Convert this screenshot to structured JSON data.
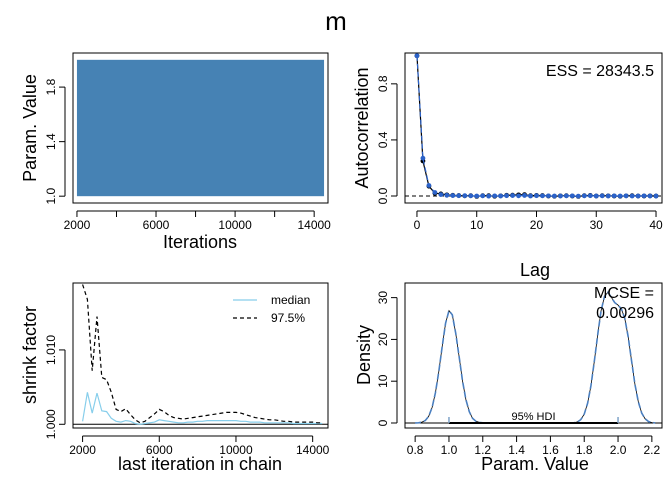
{
  "figure": {
    "title": "m"
  },
  "chart_data": [
    {
      "type": "area",
      "panel": "trace",
      "xlabel": "Iterations",
      "ylabel": "Param. Value",
      "xlim": [
        1800,
        14700
      ],
      "ylim": [
        0.95,
        2.05
      ],
      "xticks": [
        2000,
        6000,
        10000,
        14000
      ],
      "xtick_labels": [
        "2000",
        "6000",
        "10000",
        "14000"
      ],
      "xminor_ticks": [
        4000,
        8000,
        12000
      ],
      "yticks": [
        1.0,
        1.4,
        1.8
      ],
      "ytick_labels": [
        "1.0",
        "1.4",
        "1.8"
      ],
      "x_range": [
        2000,
        14500
      ],
      "value_range": [
        1.0,
        2.0
      ],
      "color": "#4682b4"
    },
    {
      "type": "line",
      "panel": "autocorrelation",
      "xlabel": "Lag",
      "ylabel": "Autocorrelation",
      "xlim": [
        -2,
        41
      ],
      "ylim": [
        -0.05,
        1.02
      ],
      "xticks": [
        0,
        10,
        20,
        30,
        40
      ],
      "xtick_labels": [
        "0",
        "10",
        "20",
        "30",
        "40"
      ],
      "yticks": [
        0.0,
        0.4,
        0.8
      ],
      "ytick_labels": [
        "0.0",
        "0.4",
        "0.8"
      ],
      "annotation": "ESS = 28343.5",
      "reference_line": 0,
      "x": [
        0,
        1,
        2,
        3,
        4,
        5,
        6,
        7,
        8,
        9,
        10,
        11,
        12,
        13,
        14,
        15,
        16,
        17,
        18,
        19,
        20,
        21,
        22,
        23,
        24,
        25,
        26,
        27,
        28,
        29,
        30,
        31,
        32,
        33,
        34,
        35,
        36,
        37,
        38,
        39,
        40
      ],
      "series": [
        {
          "name": "",
          "color": "#2b62c9",
          "values": [
            1.0,
            0.27,
            0.075,
            0.025,
            0.01,
            0.005,
            0.003,
            0.002,
            0.002,
            0.001,
            0.0,
            0.001,
            -0.001,
            0.001,
            0.0,
            0.002,
            0.003,
            0.001,
            0.004,
            0.0,
            0.002,
            0.001,
            0.001,
            0.0,
            0.0,
            0.001,
            0.001,
            -0.001,
            0.001,
            0.002,
            0.0,
            0.001,
            0.0,
            0.001,
            0.0,
            0.001,
            0.0,
            0.0,
            0.001,
            0.0,
            0.0
          ]
        },
        {
          "name": "",
          "color": "#000000",
          "values": [
            1.0,
            0.25,
            0.07,
            0.02,
            0.015,
            0.008,
            0.005,
            0.003,
            0.001,
            0.002,
            -0.003,
            0.002,
            0.002,
            -0.002,
            0.001,
            0.005,
            0.006,
            0.008,
            0.01,
            0.002,
            0.004,
            0.003,
            0.0,
            -0.002,
            0.001,
            0.002,
            0.0,
            -0.003,
            0.002,
            0.004,
            0.0,
            0.002,
            0.001,
            0.0,
            -0.002,
            0.001,
            0.002,
            0.0,
            0.0,
            0.001,
            0.0
          ]
        }
      ]
    },
    {
      "type": "line",
      "panel": "shrink",
      "xlabel": "last iteration in chain",
      "ylabel": "shrink factor",
      "xlim": [
        1500,
        14800
      ],
      "ylim": [
        0.9995,
        1.019
      ],
      "xticks": [
        2000,
        6000,
        10000,
        14000
      ],
      "xtick_labels": [
        "2000",
        "6000",
        "10000",
        "14000"
      ],
      "yticks": [
        1.0,
        1.01
      ],
      "ytick_labels": [
        "1.000",
        "1.010"
      ],
      "reference_line": 1.0,
      "legend": {
        "position": "top-right"
      },
      "x": [
        2000,
        2250,
        2500,
        2750,
        3000,
        3250,
        3500,
        3750,
        4000,
        4250,
        4500,
        4750,
        5000,
        5250,
        5500,
        5750,
        6000,
        6250,
        6500,
        6750,
        7000,
        7250,
        7500,
        7750,
        8000,
        8250,
        8500,
        8750,
        9000,
        9250,
        9500,
        9750,
        10000,
        10250,
        10500,
        10750,
        11000,
        11250,
        11500,
        11750,
        12000,
        12250,
        12500,
        12750,
        13000,
        13250,
        13500,
        13750,
        14000,
        14250,
        14500
      ],
      "series": [
        {
          "name": "median",
          "color": "#87ceeb",
          "dash": false,
          "values": [
            1.0004,
            1.0043,
            1.0015,
            1.0042,
            1.0018,
            1.0017,
            1.0008,
            1.0004,
            1.0003,
            1.0005,
            1.0004,
            1.0001,
            1.0,
            1.0001,
            1.0002,
            1.0003,
            1.0006,
            1.0005,
            1.0004,
            1.0003,
            1.0002,
            1.0002,
            1.0003,
            1.0003,
            1.0004,
            1.0004,
            1.0005,
            1.0005,
            1.0005,
            1.0005,
            1.0005,
            1.0005,
            1.0005,
            1.0004,
            1.0004,
            1.0003,
            1.0003,
            1.0003,
            1.0002,
            1.0002,
            1.0002,
            1.0002,
            1.0002,
            1.0002,
            1.0001,
            1.0001,
            1.0001,
            1.0001,
            1.0001,
            1.0001,
            1.0001
          ]
        },
        {
          "name": "97.5%",
          "color": "#000000",
          "dash": true,
          "values": [
            1.0188,
            1.0168,
            1.0072,
            1.0145,
            1.0063,
            1.006,
            1.0043,
            1.002,
            1.0017,
            1.0021,
            1.0013,
            1.0006,
            1.0002,
            1.0004,
            1.0009,
            1.0014,
            1.002,
            1.0017,
            1.0012,
            1.0009,
            1.0008,
            1.0007,
            1.0008,
            1.0009,
            1.001,
            1.0011,
            1.0012,
            1.0013,
            1.0014,
            1.0015,
            1.0016,
            1.0016,
            1.0016,
            1.0015,
            1.0013,
            1.0011,
            1.0009,
            1.0008,
            1.0007,
            1.0006,
            1.0006,
            1.0005,
            1.0004,
            1.0004,
            1.0003,
            1.0003,
            1.0003,
            1.0003,
            1.0003,
            1.0002,
            1.0002
          ]
        }
      ]
    },
    {
      "type": "line",
      "panel": "density",
      "xlabel": "Param. Value",
      "ylabel": "Density",
      "xlim": [
        0.74,
        2.26
      ],
      "ylim": [
        -1.2,
        33.5
      ],
      "xticks": [
        0.8,
        1.0,
        1.2,
        1.4,
        1.6,
        1.8,
        2.0,
        2.2
      ],
      "xtick_labels": [
        "0.8",
        "1.0",
        "1.2",
        "1.4",
        "1.6",
        "1.8",
        "2.0",
        "2.2"
      ],
      "yticks": [
        0,
        10,
        20,
        30
      ],
      "ytick_labels": [
        "0",
        "10",
        "20",
        "30"
      ],
      "annotation_lines": [
        "MCSE =",
        "0.00296"
      ],
      "hdi": {
        "label": "95% HDI",
        "lower": 1.0,
        "upper": 2.0
      },
      "x": [
        0.8,
        0.82,
        0.84,
        0.86,
        0.88,
        0.9,
        0.92,
        0.94,
        0.96,
        0.98,
        1.0,
        1.02,
        1.04,
        1.06,
        1.08,
        1.1,
        1.12,
        1.14,
        1.16,
        1.18,
        1.2,
        1.22,
        1.24,
        1.26,
        1.28,
        1.3,
        1.4,
        1.5,
        1.6,
        1.7,
        1.72,
        1.74,
        1.76,
        1.78,
        1.8,
        1.82,
        1.84,
        1.86,
        1.88,
        1.9,
        1.92,
        1.94,
        1.96,
        1.98,
        2.0,
        2.02,
        2.04,
        2.06,
        2.08,
        2.1,
        2.12,
        2.14,
        2.16,
        2.18,
        2.2,
        2.22
      ],
      "series": [
        {
          "name": "",
          "color": "#4a7fc0",
          "dash": true,
          "values": [
            0.01,
            0.05,
            0.2,
            0.6,
            1.6,
            3.7,
            7.2,
            12.3,
            18.3,
            23.9,
            26.9,
            25.9,
            21.5,
            15.9,
            10.1,
            5.6,
            2.7,
            1.1,
            0.4,
            0.15,
            0.05,
            0.02,
            0.0,
            0.0,
            0.0,
            0.0,
            0.0,
            0.0,
            0.0,
            0.0,
            0.02,
            0.07,
            0.25,
            0.8,
            2.1,
            4.7,
            9.0,
            14.9,
            21.3,
            26.9,
            30.3,
            31.3,
            30.1,
            28.8,
            28.2,
            27.3,
            25.0,
            20.6,
            14.8,
            9.3,
            5.1,
            2.4,
            1.0,
            0.35,
            0.1,
            0.03
          ]
        },
        {
          "name": "",
          "color": "#000000",
          "dash": false,
          "values": [
            0.01,
            0.05,
            0.2,
            0.6,
            1.6,
            3.7,
            7.2,
            12.3,
            18.3,
            23.9,
            26.9,
            25.9,
            21.5,
            15.9,
            10.1,
            5.6,
            2.7,
            1.1,
            0.4,
            0.15,
            0.05,
            0.02,
            0.0,
            0.0,
            0.0,
            0.0,
            0.0,
            0.0,
            0.0,
            0.0,
            0.02,
            0.07,
            0.25,
            0.8,
            2.1,
            4.7,
            9.0,
            14.9,
            21.3,
            26.9,
            30.3,
            31.3,
            30.1,
            28.8,
            28.2,
            27.3,
            25.0,
            20.6,
            14.8,
            9.3,
            5.1,
            2.4,
            1.0,
            0.35,
            0.1,
            0.03
          ]
        }
      ]
    }
  ]
}
